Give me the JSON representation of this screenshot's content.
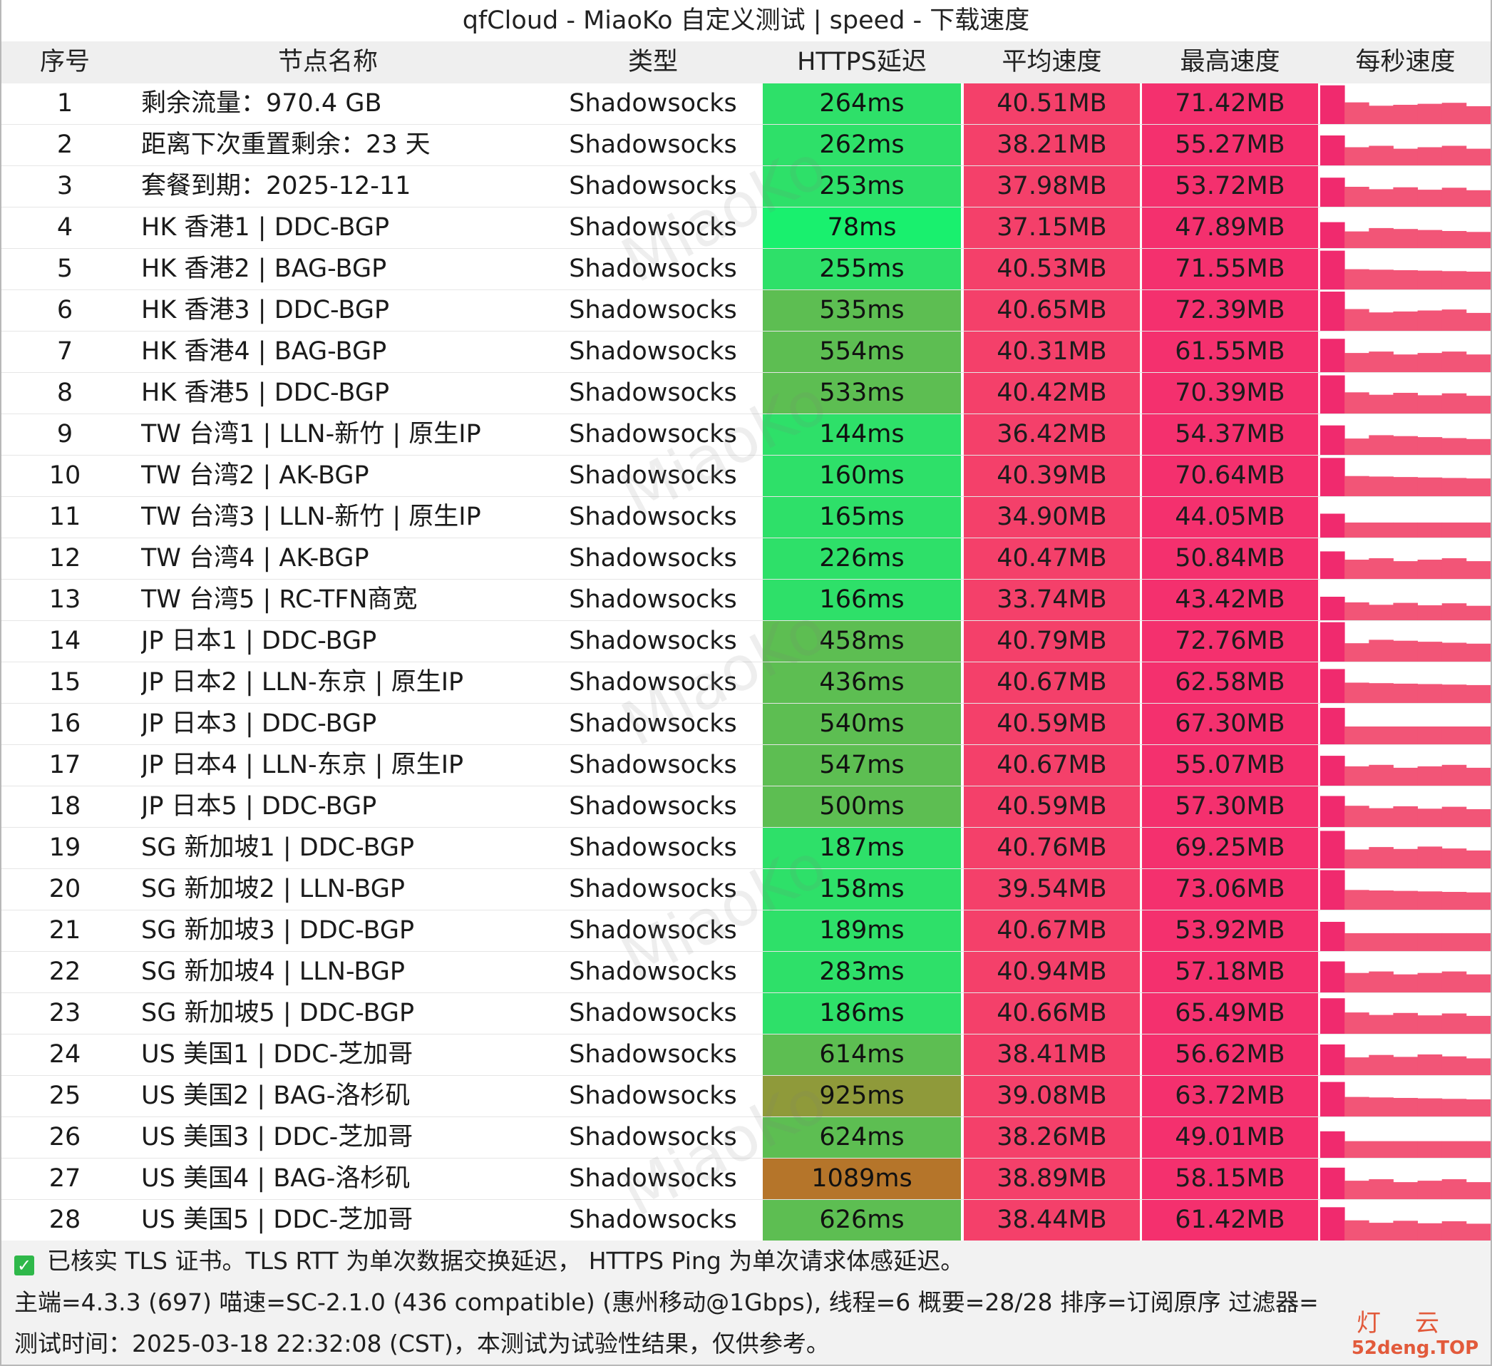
{
  "title": "qfCloud - MiaoKo 自定义测试 | speed - 下载速度",
  "headers": {
    "idx": "序号",
    "name": "节点名称",
    "type": "类型",
    "latency": "HTTPS延迟",
    "avg": "平均速度",
    "max": "最高速度",
    "per_sec": "每秒速度"
  },
  "colors": {
    "lat_fast": "#19f06e",
    "lat_ok": "#2ee069",
    "lat_mid": "#5dbe52",
    "lat_slow": "#8f9a3a",
    "lat_very_slow": "#b5752a",
    "speed_avg": "#f4406a",
    "speed_max": "#f4306e"
  },
  "rows": [
    {
      "idx": "1",
      "name": "剩余流量：970.4 GB",
      "type": "Shadowsocks",
      "latency": "264ms",
      "avg": "40.51MB",
      "max": "71.42MB"
    },
    {
      "idx": "2",
      "name": "距离下次重置剩余：23 天",
      "type": "Shadowsocks",
      "latency": "262ms",
      "avg": "38.21MB",
      "max": "55.27MB"
    },
    {
      "idx": "3",
      "name": "套餐到期：2025-12-11",
      "type": "Shadowsocks",
      "latency": "253ms",
      "avg": "37.98MB",
      "max": "53.72MB"
    },
    {
      "idx": "4",
      "name": "HK 香港1 | DDC-BGP",
      "type": "Shadowsocks",
      "latency": "78ms",
      "avg": "37.15MB",
      "max": "47.89MB"
    },
    {
      "idx": "5",
      "name": "HK 香港2 | BAG-BGP",
      "type": "Shadowsocks",
      "latency": "255ms",
      "avg": "40.53MB",
      "max": "71.55MB"
    },
    {
      "idx": "6",
      "name": "HK 香港3 | DDC-BGP",
      "type": "Shadowsocks",
      "latency": "535ms",
      "avg": "40.65MB",
      "max": "72.39MB"
    },
    {
      "idx": "7",
      "name": "HK 香港4 | BAG-BGP",
      "type": "Shadowsocks",
      "latency": "554ms",
      "avg": "40.31MB",
      "max": "61.55MB"
    },
    {
      "idx": "8",
      "name": "HK 香港5 | DDC-BGP",
      "type": "Shadowsocks",
      "latency": "533ms",
      "avg": "40.42MB",
      "max": "70.39MB"
    },
    {
      "idx": "9",
      "name": "TW 台湾1 | LLN-新竹 | 原生IP",
      "type": "Shadowsocks",
      "latency": "144ms",
      "avg": "36.42MB",
      "max": "54.37MB"
    },
    {
      "idx": "10",
      "name": "TW 台湾2 | AK-BGP",
      "type": "Shadowsocks",
      "latency": "160ms",
      "avg": "40.39MB",
      "max": "70.64MB"
    },
    {
      "idx": "11",
      "name": "TW 台湾3 | LLN-新竹 | 原生IP",
      "type": "Shadowsocks",
      "latency": "165ms",
      "avg": "34.90MB",
      "max": "44.05MB"
    },
    {
      "idx": "12",
      "name": "TW 台湾4 | AK-BGP",
      "type": "Shadowsocks",
      "latency": "226ms",
      "avg": "40.47MB",
      "max": "50.84MB"
    },
    {
      "idx": "13",
      "name": "TW 台湾5 | RC-TFN商宽",
      "type": "Shadowsocks",
      "latency": "166ms",
      "avg": "33.74MB",
      "max": "43.42MB"
    },
    {
      "idx": "14",
      "name": "JP 日本1 | DDC-BGP",
      "type": "Shadowsocks",
      "latency": "458ms",
      "avg": "40.79MB",
      "max": "72.76MB"
    },
    {
      "idx": "15",
      "name": "JP 日本2 | LLN-东京 | 原生IP",
      "type": "Shadowsocks",
      "latency": "436ms",
      "avg": "40.67MB",
      "max": "62.58MB"
    },
    {
      "idx": "16",
      "name": "JP 日本3 | DDC-BGP",
      "type": "Shadowsocks",
      "latency": "540ms",
      "avg": "40.59MB",
      "max": "67.30MB"
    },
    {
      "idx": "17",
      "name": "JP 日本4 | LLN-东京 | 原生IP",
      "type": "Shadowsocks",
      "latency": "547ms",
      "avg": "40.67MB",
      "max": "55.07MB"
    },
    {
      "idx": "18",
      "name": "JP 日本5 | DDC-BGP",
      "type": "Shadowsocks",
      "latency": "500ms",
      "avg": "40.59MB",
      "max": "57.30MB"
    },
    {
      "idx": "19",
      "name": "SG 新加坡1 | DDC-BGP",
      "type": "Shadowsocks",
      "latency": "187ms",
      "avg": "40.76MB",
      "max": "69.25MB"
    },
    {
      "idx": "20",
      "name": "SG 新加坡2 | LLN-BGP",
      "type": "Shadowsocks",
      "latency": "158ms",
      "avg": "39.54MB",
      "max": "73.06MB"
    },
    {
      "idx": "21",
      "name": "SG 新加坡3 | DDC-BGP",
      "type": "Shadowsocks",
      "latency": "189ms",
      "avg": "40.67MB",
      "max": "53.92MB"
    },
    {
      "idx": "22",
      "name": "SG 新加坡4 | LLN-BGP",
      "type": "Shadowsocks",
      "latency": "283ms",
      "avg": "40.94MB",
      "max": "57.18MB"
    },
    {
      "idx": "23",
      "name": "SG 新加坡5 | DDC-BGP",
      "type": "Shadowsocks",
      "latency": "186ms",
      "avg": "40.66MB",
      "max": "65.49MB"
    },
    {
      "idx": "24",
      "name": "US 美国1 | DDC-芝加哥",
      "type": "Shadowsocks",
      "latency": "614ms",
      "avg": "38.41MB",
      "max": "56.62MB"
    },
    {
      "idx": "25",
      "name": "US 美国2 | BAG-洛杉矶",
      "type": "Shadowsocks",
      "latency": "925ms",
      "avg": "39.08MB",
      "max": "63.72MB"
    },
    {
      "idx": "26",
      "name": "US 美国3 | DDC-芝加哥",
      "type": "Shadowsocks",
      "latency": "624ms",
      "avg": "38.26MB",
      "max": "49.01MB"
    },
    {
      "idx": "27",
      "name": "US 美国4 | BAG-洛杉矶",
      "type": "Shadowsocks",
      "latency": "1089ms",
      "avg": "38.89MB",
      "max": "58.15MB"
    },
    {
      "idx": "28",
      "name": "US 美国5 | DDC-芝加哥",
      "type": "Shadowsocks",
      "latency": "626ms",
      "avg": "38.44MB",
      "max": "61.42MB"
    }
  ],
  "footer": {
    "line1": "已核实 TLS 证书。TLS RTT 为单次数据交换延迟， HTTPS Ping 为单次请求体感延迟。",
    "line2": "主端=4.3.3 (697) 喵速=SC-2.1.0 (436 compatible) (惠州移动@1Gbps), 线程=6 概要=28/28 排序=订阅原序 过滤器=",
    "line3": "测试时间：2025-03-18 22:32:08 (CST)，本测试为试验性结果，仅供参考。",
    "check_icon": "checkmark-icon"
  },
  "watermark": "MiaoKo",
  "logo": {
    "top": "灯云",
    "bottom": "52deng.TOP"
  }
}
